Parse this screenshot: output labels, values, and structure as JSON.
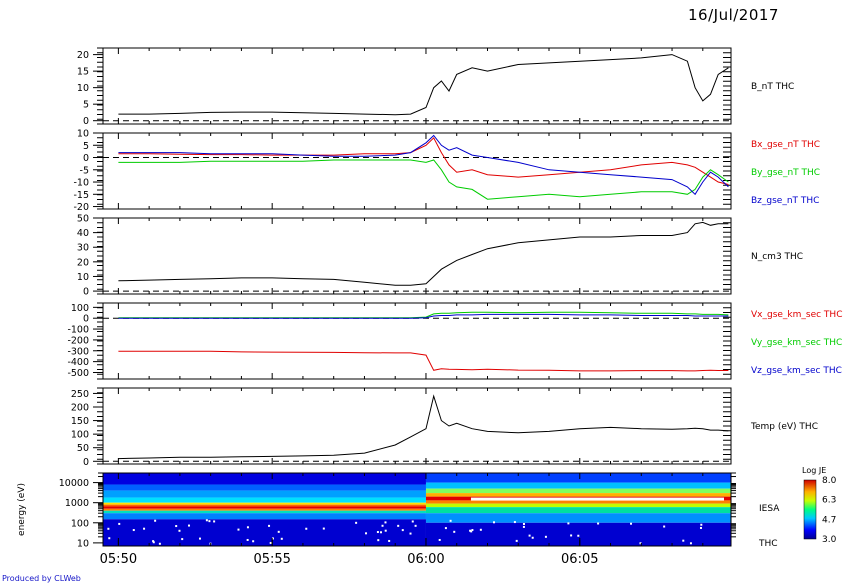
{
  "header": {
    "date": "16/Jul/2017"
  },
  "footer": {
    "credit": "Produced by CLWeb"
  },
  "colors": {
    "red": "#e00000",
    "green": "#00cc00",
    "blue": "#0000cc",
    "black": "#000000"
  },
  "chart_data": [
    {
      "type": "line",
      "x": [
        "05:50",
        "05:51",
        "05:52",
        "05:53",
        "05:54",
        "05:55",
        "05:56",
        "05:57",
        "05:58",
        "05:59",
        "05:59:30",
        "06:00",
        "06:00:15",
        "06:00:30",
        "06:00:45",
        "06:01",
        "06:01:30",
        "06:02",
        "06:03",
        "06:04",
        "06:05",
        "06:06",
        "06:07",
        "06:08",
        "06:08:30",
        "06:08:45",
        "06:09",
        "06:09:15",
        "06:09:30",
        "06:09:50"
      ],
      "series": [
        {
          "name": "B_nT THC",
          "values": [
            2,
            2,
            2.2,
            2.5,
            2.6,
            2.6,
            2.4,
            2.2,
            2,
            1.8,
            2,
            4,
            10,
            12,
            9,
            14,
            16,
            15,
            17,
            17.5,
            18,
            18.5,
            19,
            20,
            18,
            10,
            6,
            8,
            14,
            16
          ]
        }
      ],
      "ylim": [
        -1,
        22
      ],
      "yticks": [
        0,
        5,
        10,
        15,
        20
      ],
      "ytick_labels": [
        "0",
        "5",
        "10",
        "15",
        "20"
      ],
      "labels": [
        {
          "text": "B_nT THC",
          "color": "#000000"
        }
      ]
    },
    {
      "type": "line",
      "x": [
        "05:50",
        "05:51",
        "05:52",
        "05:53",
        "05:54",
        "05:55",
        "05:56",
        "05:57",
        "05:58",
        "05:59",
        "05:59:30",
        "06:00",
        "06:00:15",
        "06:00:30",
        "06:00:45",
        "06:01",
        "06:01:30",
        "06:02",
        "06:03",
        "06:04",
        "06:05",
        "06:06",
        "06:07",
        "06:08",
        "06:08:30",
        "06:08:45",
        "06:09",
        "06:09:15",
        "06:09:30",
        "06:09:50"
      ],
      "series": [
        {
          "name": "Bx_gse_nT THC",
          "color": "#e00000",
          "values": [
            1.5,
            1.5,
            1.3,
            1.2,
            1.2,
            1,
            1,
            1,
            1.5,
            1.5,
            2,
            5,
            8,
            2,
            -3,
            -6,
            -5,
            -7,
            -8,
            -7,
            -6,
            -5,
            -3,
            -2,
            -3,
            -4,
            -6,
            -8,
            -10,
            -11
          ]
        },
        {
          "name": "By_gse_nT THC",
          "color": "#00cc00",
          "values": [
            -2,
            -2,
            -2,
            -1.5,
            -1.5,
            -1.5,
            -1.5,
            -1,
            -1,
            -1,
            -1,
            -2,
            -1,
            -5,
            -10,
            -12,
            -13,
            -17,
            -16,
            -15,
            -16,
            -15,
            -14,
            -14,
            -15,
            -13,
            -8,
            -5,
            -7,
            -10
          ]
        },
        {
          "name": "Bz_gse_nT THC",
          "color": "#0000cc",
          "values": [
            2,
            2,
            2,
            1.5,
            1.5,
            1.5,
            1,
            0.5,
            0.5,
            1,
            2,
            6,
            9,
            5,
            3,
            4,
            1,
            0,
            -2,
            -5,
            -6,
            -7,
            -8,
            -9,
            -12,
            -15,
            -10,
            -6,
            -8,
            -12
          ]
        }
      ],
      "ylim": [
        -21,
        10
      ],
      "yticks": [
        -20,
        -15,
        -10,
        -5,
        0,
        5,
        10
      ],
      "ytick_labels": [
        "-20",
        "-15",
        "-10",
        "-5",
        "0",
        "5",
        "10"
      ],
      "labels": [
        {
          "text": "Bx_gse_nT THC",
          "color": "#e00000"
        },
        {
          "text": "By_gse_nT THC",
          "color": "#00cc00"
        },
        {
          "text": "Bz_gse_nT THC",
          "color": "#0000cc"
        }
      ]
    },
    {
      "type": "line",
      "x": [
        "05:50",
        "05:51",
        "05:52",
        "05:53",
        "05:54",
        "05:55",
        "05:56",
        "05:57",
        "05:58",
        "05:59",
        "05:59:30",
        "06:00",
        "06:00:15",
        "06:00:30",
        "06:00:45",
        "06:01",
        "06:01:30",
        "06:02",
        "06:03",
        "06:04",
        "06:05",
        "06:06",
        "06:07",
        "06:08",
        "06:08:30",
        "06:08:45",
        "06:09",
        "06:09:15",
        "06:09:30",
        "06:09:50"
      ],
      "series": [
        {
          "name": "N_cm3 THC",
          "values": [
            7,
            7.5,
            8,
            8.5,
            9,
            9,
            8.5,
            8,
            6,
            4,
            4,
            5,
            10,
            15,
            18,
            21,
            25,
            29,
            33,
            35,
            37,
            37,
            38,
            38,
            40,
            46,
            47,
            45,
            46,
            46
          ]
        }
      ],
      "ylim": [
        -2,
        50
      ],
      "yticks": [
        0,
        10,
        20,
        30,
        40,
        50
      ],
      "ytick_labels": [
        "0",
        "10",
        "20",
        "30",
        "40",
        "50"
      ],
      "labels": [
        {
          "text": "N_cm3 THC",
          "color": "#000000"
        }
      ]
    },
    {
      "type": "line",
      "x": [
        "05:50",
        "05:51",
        "05:52",
        "05:53",
        "05:54",
        "05:55",
        "05:56",
        "05:57",
        "05:58",
        "05:59",
        "05:59:30",
        "06:00",
        "06:00:15",
        "06:00:30",
        "06:00:45",
        "06:01",
        "06:01:30",
        "06:02",
        "06:03",
        "06:04",
        "06:05",
        "06:06",
        "06:07",
        "06:08",
        "06:08:30",
        "06:08:45",
        "06:09",
        "06:09:15",
        "06:09:30",
        "06:09:50"
      ],
      "series": [
        {
          "name": "Vx_gse_km_sec THC",
          "color": "#e00000",
          "values": [
            -305,
            -305,
            -305,
            -305,
            -310,
            -312,
            -313,
            -315,
            -318,
            -320,
            -320,
            -340,
            -480,
            -465,
            -470,
            -472,
            -475,
            -470,
            -478,
            -480,
            -485,
            -485,
            -483,
            -483,
            -485,
            -485,
            -482,
            -480,
            -482,
            -482
          ]
        },
        {
          "name": "Vy_gse_km_sec THC",
          "color": "#00cc00",
          "values": [
            5,
            5,
            5,
            5,
            5,
            5,
            5,
            5,
            5,
            5,
            5,
            10,
            40,
            45,
            45,
            50,
            55,
            55,
            50,
            55,
            55,
            50,
            45,
            45,
            40,
            40,
            35,
            35,
            35,
            30
          ]
        },
        {
          "name": "Vz_gse_km_sec THC",
          "color": "#0000cc",
          "values": [
            0,
            0,
            0,
            0,
            0,
            0,
            0,
            0,
            0,
            0,
            0,
            5,
            20,
            25,
            25,
            30,
            30,
            35,
            35,
            35,
            30,
            30,
            25,
            25,
            25,
            20,
            20,
            20,
            20,
            20
          ]
        }
      ],
      "ylim": [
        -560,
        140
      ],
      "yticks": [
        -500,
        -400,
        -300,
        -200,
        -100,
        0,
        100
      ],
      "ytick_labels": [
        "-500",
        "-400",
        "-300",
        "-200",
        "-100",
        "0",
        "100"
      ],
      "labels": [
        {
          "text": "Vx_gse_km_sec THC",
          "color": "#e00000"
        },
        {
          "text": "Vy_gse_km_sec THC",
          "color": "#00cc00"
        },
        {
          "text": "Vz_gse_km_sec THC",
          "color": "#0000cc"
        }
      ]
    },
    {
      "type": "line",
      "x": [
        "05:50",
        "05:51",
        "05:52",
        "05:53",
        "05:54",
        "05:55",
        "05:56",
        "05:57",
        "05:58",
        "05:59",
        "05:59:30",
        "06:00",
        "06:00:15",
        "06:00:30",
        "06:00:45",
        "06:01",
        "06:01:30",
        "06:02",
        "06:03",
        "06:04",
        "06:05",
        "06:06",
        "06:07",
        "06:08",
        "06:08:30",
        "06:08:45",
        "06:09",
        "06:09:15",
        "06:09:30",
        "06:09:50"
      ],
      "series": [
        {
          "name": "Temp (eV) THC",
          "values": [
            10,
            12,
            15,
            15,
            17,
            18,
            20,
            22,
            30,
            60,
            90,
            120,
            240,
            150,
            130,
            140,
            120,
            110,
            105,
            110,
            120,
            125,
            120,
            118,
            120,
            122,
            120,
            115,
            115,
            112
          ]
        }
      ],
      "ylim": [
        -10,
        270
      ],
      "yticks": [
        0,
        50,
        100,
        150,
        200,
        250
      ],
      "ytick_labels": [
        "0",
        "50",
        "100",
        "150",
        "200",
        "250"
      ],
      "labels": [
        {
          "text": "Temp (eV) THC",
          "color": "#000000"
        }
      ]
    },
    {
      "type": "heatmap",
      "ylabel": "energy (eV)",
      "ylog": true,
      "ylim": [
        7,
        30000
      ],
      "yticks": [
        10,
        100,
        1000,
        10000
      ],
      "ytick_labels": [
        "10",
        "100",
        "1000",
        "10000"
      ],
      "right_labels": [
        "IESA",
        "THC"
      ],
      "colorbar": {
        "title": "Log JE",
        "min": 3.0,
        "max": 8.0,
        "ticks": [
          "3.0",
          "4.7",
          "6.3",
          "8.0"
        ]
      },
      "xlim": [
        "05:49:30",
        "06:09:55"
      ],
      "xticks": [
        "05:50",
        "05:55",
        "06:00",
        "06:05"
      ],
      "peak_energy_eV": [
        600,
        600,
        600,
        600,
        1500,
        1500,
        1500,
        1500
      ],
      "peak_times": [
        "05:50",
        "05:55",
        "05:59",
        "06:00",
        "06:00:30",
        "06:03",
        "06:06",
        "06:09:50"
      ]
    }
  ]
}
